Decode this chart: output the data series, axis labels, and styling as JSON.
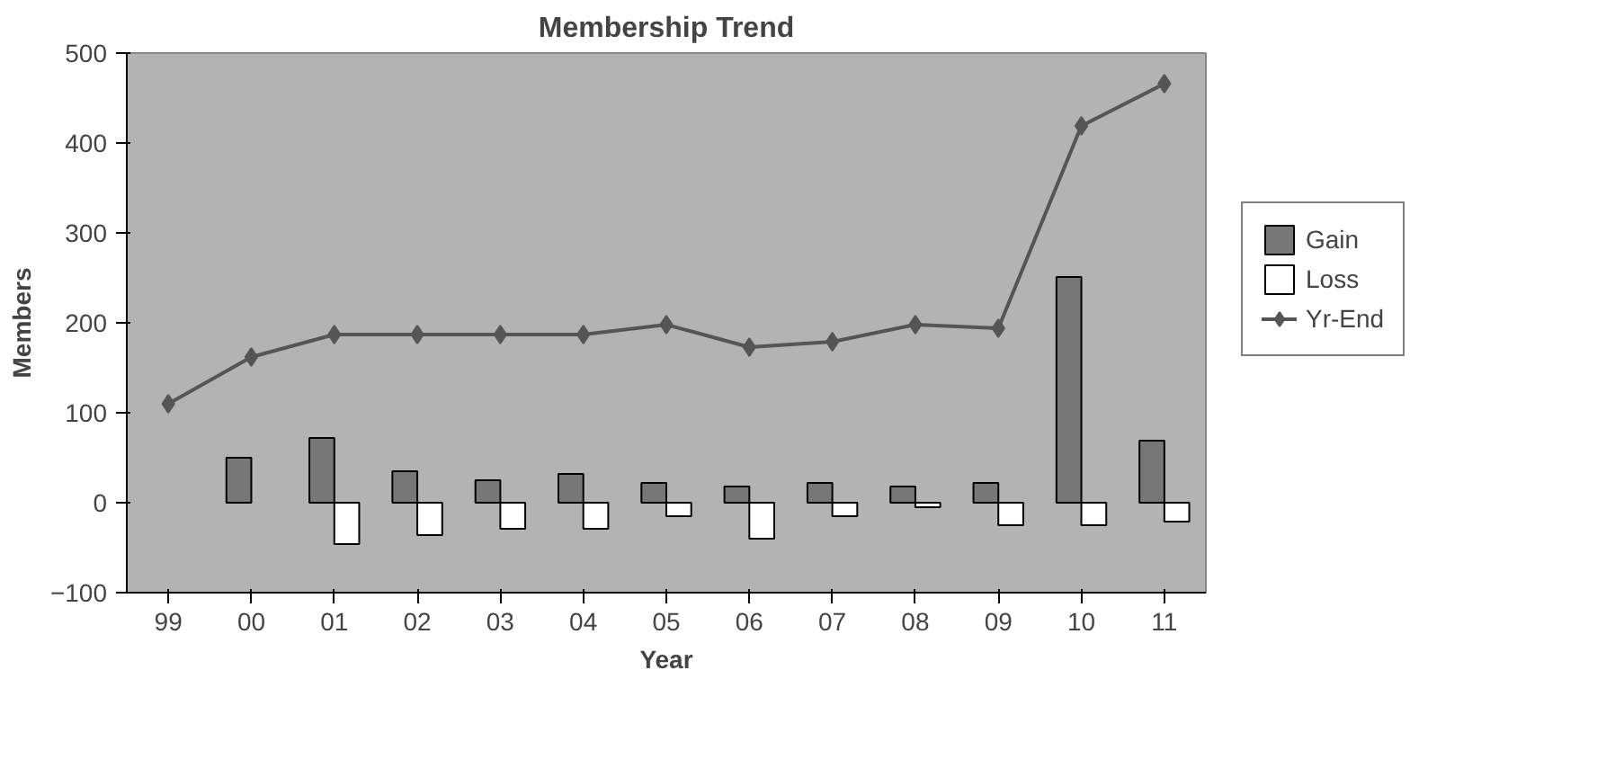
{
  "chart_data": {
    "type": "bar",
    "title": "Membership Trend",
    "xlabel": "Year",
    "ylabel": "Members",
    "categories": [
      "99",
      "00",
      "01",
      "02",
      "03",
      "04",
      "05",
      "06",
      "07",
      "08",
      "09",
      "10",
      "11"
    ],
    "series": [
      {
        "name": "Gain",
        "color": "#777777",
        "values": [
          null,
          50,
          72,
          35,
          25,
          32,
          22,
          18,
          22,
          18,
          22,
          251,
          69
        ]
      },
      {
        "name": "Loss",
        "color": "#ffffff",
        "values": [
          null,
          null,
          -46,
          -36,
          -29,
          -29,
          -15,
          -40,
          -15,
          -5,
          -25,
          -25,
          -21
        ]
      },
      {
        "name": "Yr-End",
        "type": "line",
        "color": "#555555",
        "marker": "diamond",
        "values": [
          110,
          162,
          187,
          187,
          187,
          187,
          198,
          173,
          179,
          198,
          194,
          419,
          466
        ]
      }
    ],
    "ylim": [
      -100,
      500
    ],
    "yticks": [
      -100,
      0,
      100,
      200,
      300,
      400,
      500
    ],
    "grid": false,
    "legend": "right"
  }
}
